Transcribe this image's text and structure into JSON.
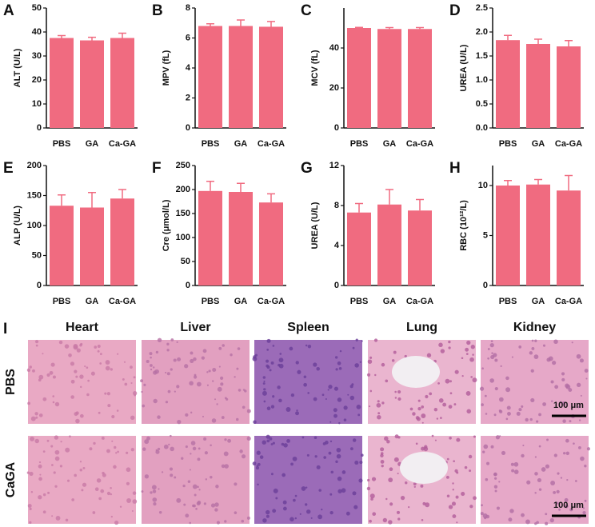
{
  "chart_data": [
    {
      "type": "bar",
      "panel_label": "A",
      "y_label": "ALT (U/L)",
      "categories": [
        "PBS",
        "GA",
        "Ca-GA"
      ],
      "values": [
        37.5,
        36.5,
        37.5
      ],
      "errors": [
        1,
        1.3,
        2
      ],
      "color": "#f06b80",
      "ylim": [
        0,
        50
      ],
      "yticks": [
        0,
        10,
        20,
        30,
        40,
        50
      ]
    },
    {
      "type": "bar",
      "panel_label": "B",
      "y_label": "MPV (fL)",
      "categories": [
        "PBS",
        "GA",
        "Ca-GA"
      ],
      "values": [
        6.8,
        6.8,
        6.75
      ],
      "errors": [
        0.15,
        0.4,
        0.35
      ],
      "color": "#f06b80",
      "ylim": [
        0,
        8
      ],
      "yticks": [
        0,
        2,
        4,
        6,
        8
      ]
    },
    {
      "type": "bar",
      "panel_label": "C",
      "y_label": "MCV (fL)",
      "categories": [
        "PBS",
        "GA",
        "Ca-GA"
      ],
      "values": [
        50,
        49.5,
        49.5
      ],
      "errors": [
        0.3,
        0.7,
        0.7
      ],
      "color": "#f06b80",
      "ylim": [
        0,
        60
      ],
      "yticks": [
        0,
        20,
        40
      ]
    },
    {
      "type": "bar",
      "panel_label": "D",
      "y_label": "UREA  (U/L)",
      "categories": [
        "PBS",
        "GA",
        "Ca-GA"
      ],
      "values": [
        1.83,
        1.75,
        1.7
      ],
      "errors": [
        0.1,
        0.1,
        0.12
      ],
      "color": "#f06b80",
      "ylim": [
        0,
        2.5
      ],
      "yticks": [
        {
          "value": 0,
          "label": "0.0"
        },
        {
          "value": 0.5,
          "label": "0.5"
        },
        {
          "value": 1,
          "label": "1.0"
        },
        {
          "value": 1.5,
          "label": "1.5"
        },
        {
          "value": 2,
          "label": "2.0"
        },
        {
          "value": 2.5,
          "label": "2.5"
        }
      ]
    },
    {
      "type": "bar",
      "panel_label": "E",
      "y_label": "ALP (U/L)",
      "categories": [
        "PBS",
        "GA",
        "Ca-GA"
      ],
      "values": [
        133,
        130,
        145
      ],
      "errors": [
        18,
        25,
        15
      ],
      "color": "#f06b80",
      "ylim": [
        0,
        200
      ],
      "yticks": [
        0,
        50,
        100,
        150,
        200
      ]
    },
    {
      "type": "bar",
      "panel_label": "F",
      "y_label": "Cre (μmol/L)",
      "categories": [
        "PBS",
        "GA",
        "Ca-GA"
      ],
      "values": [
        197,
        195,
        173
      ],
      "errors": [
        20,
        18,
        18
      ],
      "color": "#f06b80",
      "ylim": [
        0,
        250
      ],
      "yticks": [
        0,
        50,
        100,
        150,
        200,
        250
      ]
    },
    {
      "type": "bar",
      "panel_label": "G",
      "y_label": "UREA (U/L)",
      "categories": [
        "PBS",
        "GA",
        "Ca-GA"
      ],
      "values": [
        7.3,
        8.1,
        7.5
      ],
      "errors": [
        0.9,
        1.5,
        1.1
      ],
      "color": "#f06b80",
      "ylim": [
        0,
        12
      ],
      "yticks": [
        0,
        4,
        8,
        12
      ]
    },
    {
      "type": "bar",
      "panel_label": "H",
      "y_label": "RBC (10¹²/L)",
      "categories": [
        "PBS",
        "GA",
        "Ca-GA"
      ],
      "values": [
        10,
        10.1,
        9.5
      ],
      "errors": [
        0.5,
        0.5,
        1.5
      ],
      "color": "#f06b80",
      "ylim": [
        0,
        12
      ],
      "yticks": [
        0,
        5,
        10
      ]
    }
  ],
  "histology": {
    "panel_label": "I",
    "columns": [
      "Heart",
      "Liver",
      "Spleen",
      "Lung",
      "Kidney"
    ],
    "rows": [
      "PBS",
      "CaGA"
    ],
    "scale_bars": [
      "100 μm",
      "100 μm"
    ]
  }
}
